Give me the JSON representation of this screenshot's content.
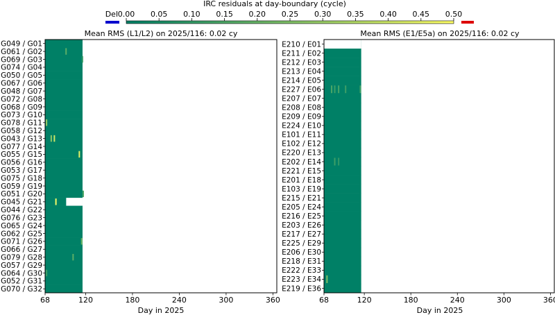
{
  "colorbar": {
    "title": "IRC residuals at day-boundary (cycle)",
    "deleted_label": "Del",
    "ticks": [
      "0.00",
      "0.05",
      "0.10",
      "0.15",
      "0.20",
      "0.25",
      "0.30",
      "0.35",
      "0.40",
      "0.45",
      "0.50"
    ],
    "range": [
      0,
      0.5
    ],
    "cmap": "summer",
    "deleted_color": "#0000cc",
    "over_color": "#dd0000"
  },
  "chart_data": [
    {
      "type": "heatmap",
      "title": "Mean RMS (L1/L2) on 2025/116:  0.02 cy",
      "xlabel": "Day in 2025",
      "xlim": [
        68,
        365
      ],
      "xticks": [
        "68",
        "120",
        "180",
        "240",
        "300",
        "360"
      ],
      "xtick_values": [
        68,
        120,
        180,
        240,
        300,
        360
      ],
      "data_day_range": [
        68,
        116
      ],
      "base_color": "#008066",
      "rows": [
        "G049 / G01",
        "G061 / G02",
        "G069 / G03",
        "G074 / G04",
        "G050 / G05",
        "G067 / G06",
        "G048 / G07",
        "G072 / G08",
        "G068 / G09",
        "G073 / G10",
        "G078 / G11",
        "G058 / G12",
        "G043 / G13",
        "G077 / G14",
        "G055 / G15",
        "G056 / G16",
        "G053 / G17",
        "G075 / G18",
        "G059 / G19",
        "G051 / G20",
        "G045 / G21",
        "G044 / G22",
        "G076 / G23",
        "G065 / G24",
        "G062 / G25",
        "G071 / G26",
        "G066 / G27",
        "G079 / G28",
        "G057 / G29",
        "G064 / G30",
        "G052 / G31",
        "G070 / G32"
      ],
      "gaps": [
        {
          "row": 20,
          "from_day": 95,
          "to_day": 116
        }
      ],
      "highlights": [
        {
          "row": 1,
          "day": 94,
          "value": 0.18
        },
        {
          "row": 2,
          "day": 115,
          "value": 0.1
        },
        {
          "row": 10,
          "day": 69,
          "value": 0.3
        },
        {
          "row": 12,
          "day": 75,
          "value": 0.28
        },
        {
          "row": 12,
          "day": 79,
          "value": 0.4
        },
        {
          "row": 14,
          "day": 111,
          "value": 0.45
        },
        {
          "row": 19,
          "day": 116,
          "value": 0.15
        },
        {
          "row": 20,
          "day": 81,
          "value": 0.48
        },
        {
          "row": 25,
          "day": 114,
          "value": 0.22
        },
        {
          "row": 27,
          "day": 103,
          "value": 0.18
        },
        {
          "row": 29,
          "day": 69,
          "value": 0.12
        }
      ]
    },
    {
      "type": "heatmap",
      "title": "Mean RMS (E1/E5a) on 2025/116:  0.02 cy",
      "xlabel": "Day in 2025",
      "xlim": [
        68,
        365
      ],
      "xticks": [
        "68",
        "120",
        "180",
        "240",
        "300",
        "360"
      ],
      "xtick_values": [
        68,
        120,
        180,
        240,
        300,
        360
      ],
      "data_day_range": [
        68,
        116
      ],
      "base_color": "#008066",
      "rows": [
        "E210 / E01",
        "E211 / E02",
        "E212 / E03",
        "E213 / E04",
        "E214 / E05",
        "E227 / E06",
        "E207 / E07",
        "E208 / E08",
        "E209 / E09",
        "E224 / E10",
        "E101 / E11",
        "E102 / E12",
        "E220 / E13",
        "E202 / E14",
        "E221 / E15",
        "E201 / E18",
        "E103 / E19",
        "E215 / E21",
        "E205 / E24",
        "E216 / E25",
        "E203 / E26",
        "E217 / E27",
        "E225 / E29",
        "E206 / E30",
        "E218 / E31",
        "E222 / E33",
        "E223 / E34",
        "E219 / E36"
      ],
      "gaps": [
        {
          "row": 0,
          "from_day": 68,
          "to_day": 116
        }
      ],
      "highlights": [
        {
          "row": 5,
          "day": 77,
          "value": 0.15
        },
        {
          "row": 5,
          "day": 81,
          "value": 0.12
        },
        {
          "row": 5,
          "day": 86,
          "value": 0.14
        },
        {
          "row": 5,
          "day": 95,
          "value": 0.12
        },
        {
          "row": 5,
          "day": 114,
          "value": 0.13
        },
        {
          "row": 13,
          "day": 81,
          "value": 0.12
        },
        {
          "row": 13,
          "day": 86,
          "value": 0.1
        },
        {
          "row": 26,
          "day": 71,
          "value": 0.25
        }
      ]
    }
  ]
}
